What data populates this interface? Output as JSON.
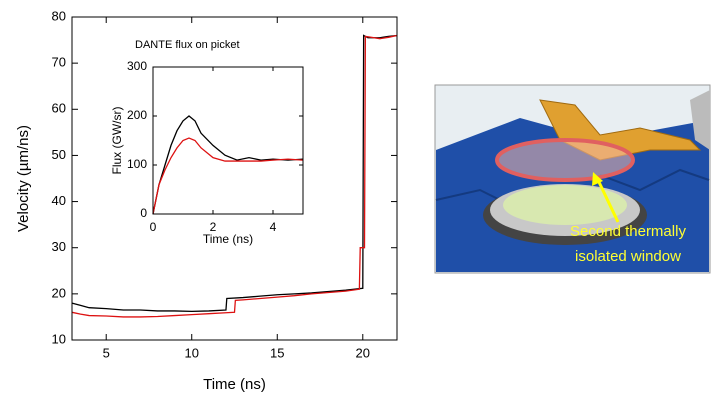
{
  "chart_data": [
    {
      "type": "line",
      "xlabel": "Time (ns)",
      "ylabel": "Velocity (µm/ns)",
      "xlim": [
        3,
        22
      ],
      "xticks": [
        5,
        10,
        15,
        20
      ],
      "ylim": [
        10,
        80
      ],
      "yticks": [
        10,
        20,
        30,
        40,
        50,
        60,
        70,
        80
      ],
      "series": [
        {
          "color": "#000000",
          "x": [
            3,
            3.5,
            4,
            5,
            6,
            7,
            8,
            9,
            10,
            11,
            12,
            12.05,
            13,
            14,
            15,
            16,
            17,
            18,
            19,
            20,
            20.05,
            20.3,
            21,
            21.5,
            22
          ],
          "values": [
            18,
            17.5,
            17,
            16.8,
            16.5,
            16.5,
            16.3,
            16.3,
            16.2,
            16.3,
            16.5,
            19,
            19.2,
            19.5,
            19.8,
            20,
            20.2,
            20.5,
            20.8,
            21.2,
            76,
            75.5,
            75.5,
            75.8,
            76
          ]
        },
        {
          "color": "#dd1111",
          "x": [
            3,
            3.5,
            4,
            5,
            6,
            7,
            8,
            9,
            10,
            11,
            12,
            12.5,
            12.55,
            13,
            14,
            15,
            16,
            17,
            18,
            19,
            19.8,
            19.85,
            20.1,
            20.15,
            21,
            21.5,
            22
          ],
          "values": [
            16,
            15.6,
            15.3,
            15.2,
            15,
            15,
            15.1,
            15.3,
            15.5,
            15.7,
            15.9,
            16,
            18.6,
            18.7,
            19,
            19.3,
            19.6,
            20,
            20.3,
            20.6,
            21,
            30,
            30,
            75.8,
            75.3,
            75.6,
            76
          ]
        }
      ]
    },
    {
      "type": "line",
      "title": "DANTE flux on picket",
      "xlabel": "Time (ns)",
      "ylabel": "Flux (GW/sr)",
      "xlim": [
        0,
        5
      ],
      "xticks": [
        0,
        2,
        4
      ],
      "ylim": [
        0,
        300
      ],
      "yticks": [
        0,
        100,
        200,
        300
      ],
      "series": [
        {
          "color": "#000000",
          "x": [
            0,
            0.2,
            0.4,
            0.6,
            0.8,
            1.0,
            1.2,
            1.4,
            1.6,
            2.0,
            2.4,
            2.8,
            3.2,
            3.6,
            4.0,
            4.5,
            5.0
          ],
          "values": [
            0,
            60,
            100,
            140,
            170,
            190,
            200,
            190,
            165,
            140,
            120,
            110,
            115,
            110,
            112,
            110,
            112
          ]
        },
        {
          "color": "#dd1111",
          "x": [
            0,
            0.2,
            0.4,
            0.6,
            0.8,
            1.0,
            1.2,
            1.4,
            1.6,
            2.0,
            2.4,
            2.8,
            3.2,
            3.6,
            4.0,
            4.5,
            5.0
          ],
          "values": [
            0,
            60,
            90,
            115,
            135,
            150,
            155,
            150,
            135,
            115,
            108,
            108,
            108,
            108,
            110,
            112,
            110
          ]
        }
      ]
    }
  ],
  "illustration": {
    "annotation": [
      "Second thermally",
      "isolated window"
    ]
  }
}
